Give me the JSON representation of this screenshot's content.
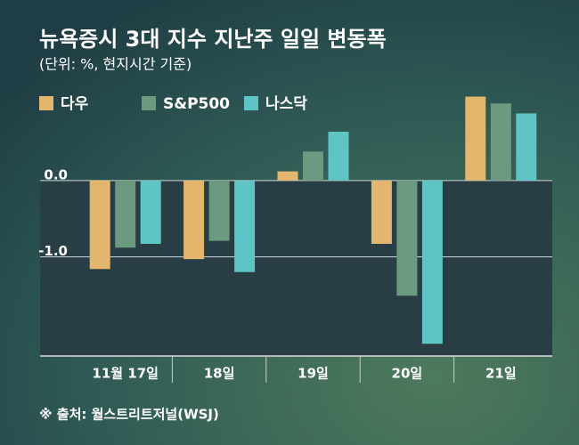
{
  "chart_data": {
    "type": "bar",
    "title": "뉴욕증시 3대 지수 지난주 일일 변동폭",
    "subtitle": "(단위: %, 현지시간 기준)",
    "source": "※ 출처: 월스트리트저널(WSJ)",
    "categories": [
      "11월 17일",
      "18일",
      "19일",
      "20일",
      "21일"
    ],
    "series": [
      {
        "name": "다우",
        "color": "#e2b66c",
        "values": [
          -1.16,
          -1.03,
          0.12,
          -0.83,
          1.1
        ]
      },
      {
        "name": "S&P500",
        "color": "#6c9a80",
        "values": [
          -0.88,
          -0.79,
          0.38,
          -1.51,
          1.01
        ]
      },
      {
        "name": "나스닥",
        "color": "#5ec4c4",
        "values": [
          -0.83,
          -1.2,
          0.64,
          -2.14,
          0.88
        ]
      }
    ],
    "ylim": [
      -2.3,
      1.2
    ],
    "yticks": [
      {
        "value": 0,
        "label": "0.0"
      },
      {
        "value": -1,
        "label": "-1.0"
      }
    ],
    "grid": true
  }
}
